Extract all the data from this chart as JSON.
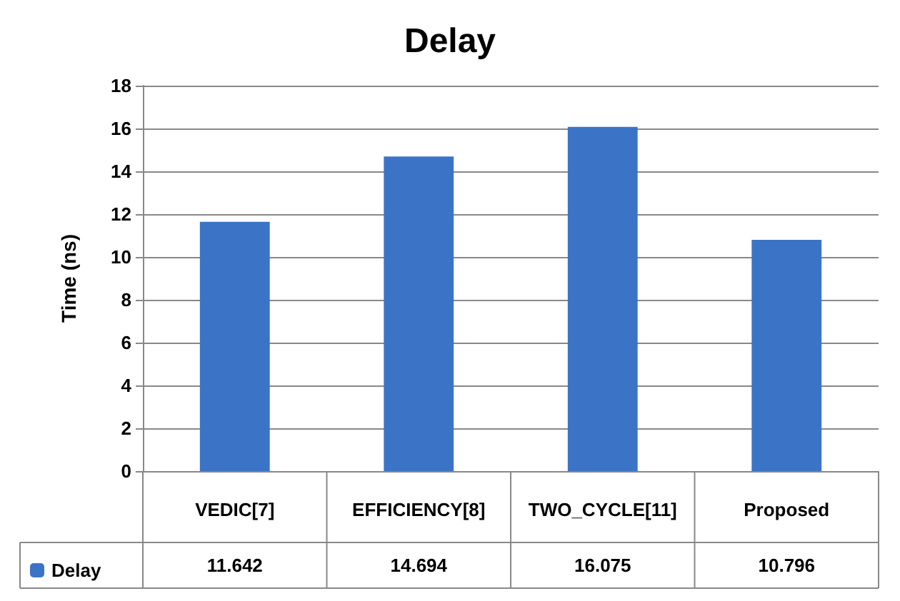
{
  "chart_data": {
    "type": "bar",
    "title": "Delay",
    "ylabel": "Time (ns)",
    "categories": [
      "VEDIC[7]",
      "EFFICIENCY[8]",
      "TWO_CYCLE[11]",
      "Proposed"
    ],
    "series": [
      {
        "name": "Delay",
        "color": "#3b74c6",
        "values": [
          11.642,
          14.694,
          16.075,
          10.796
        ]
      }
    ],
    "ylim": [
      0,
      18
    ],
    "yticks": [
      0,
      2,
      4,
      6,
      8,
      10,
      12,
      14,
      16,
      18
    ],
    "grid": "y",
    "legend": "bottom left",
    "data_labels": true
  }
}
